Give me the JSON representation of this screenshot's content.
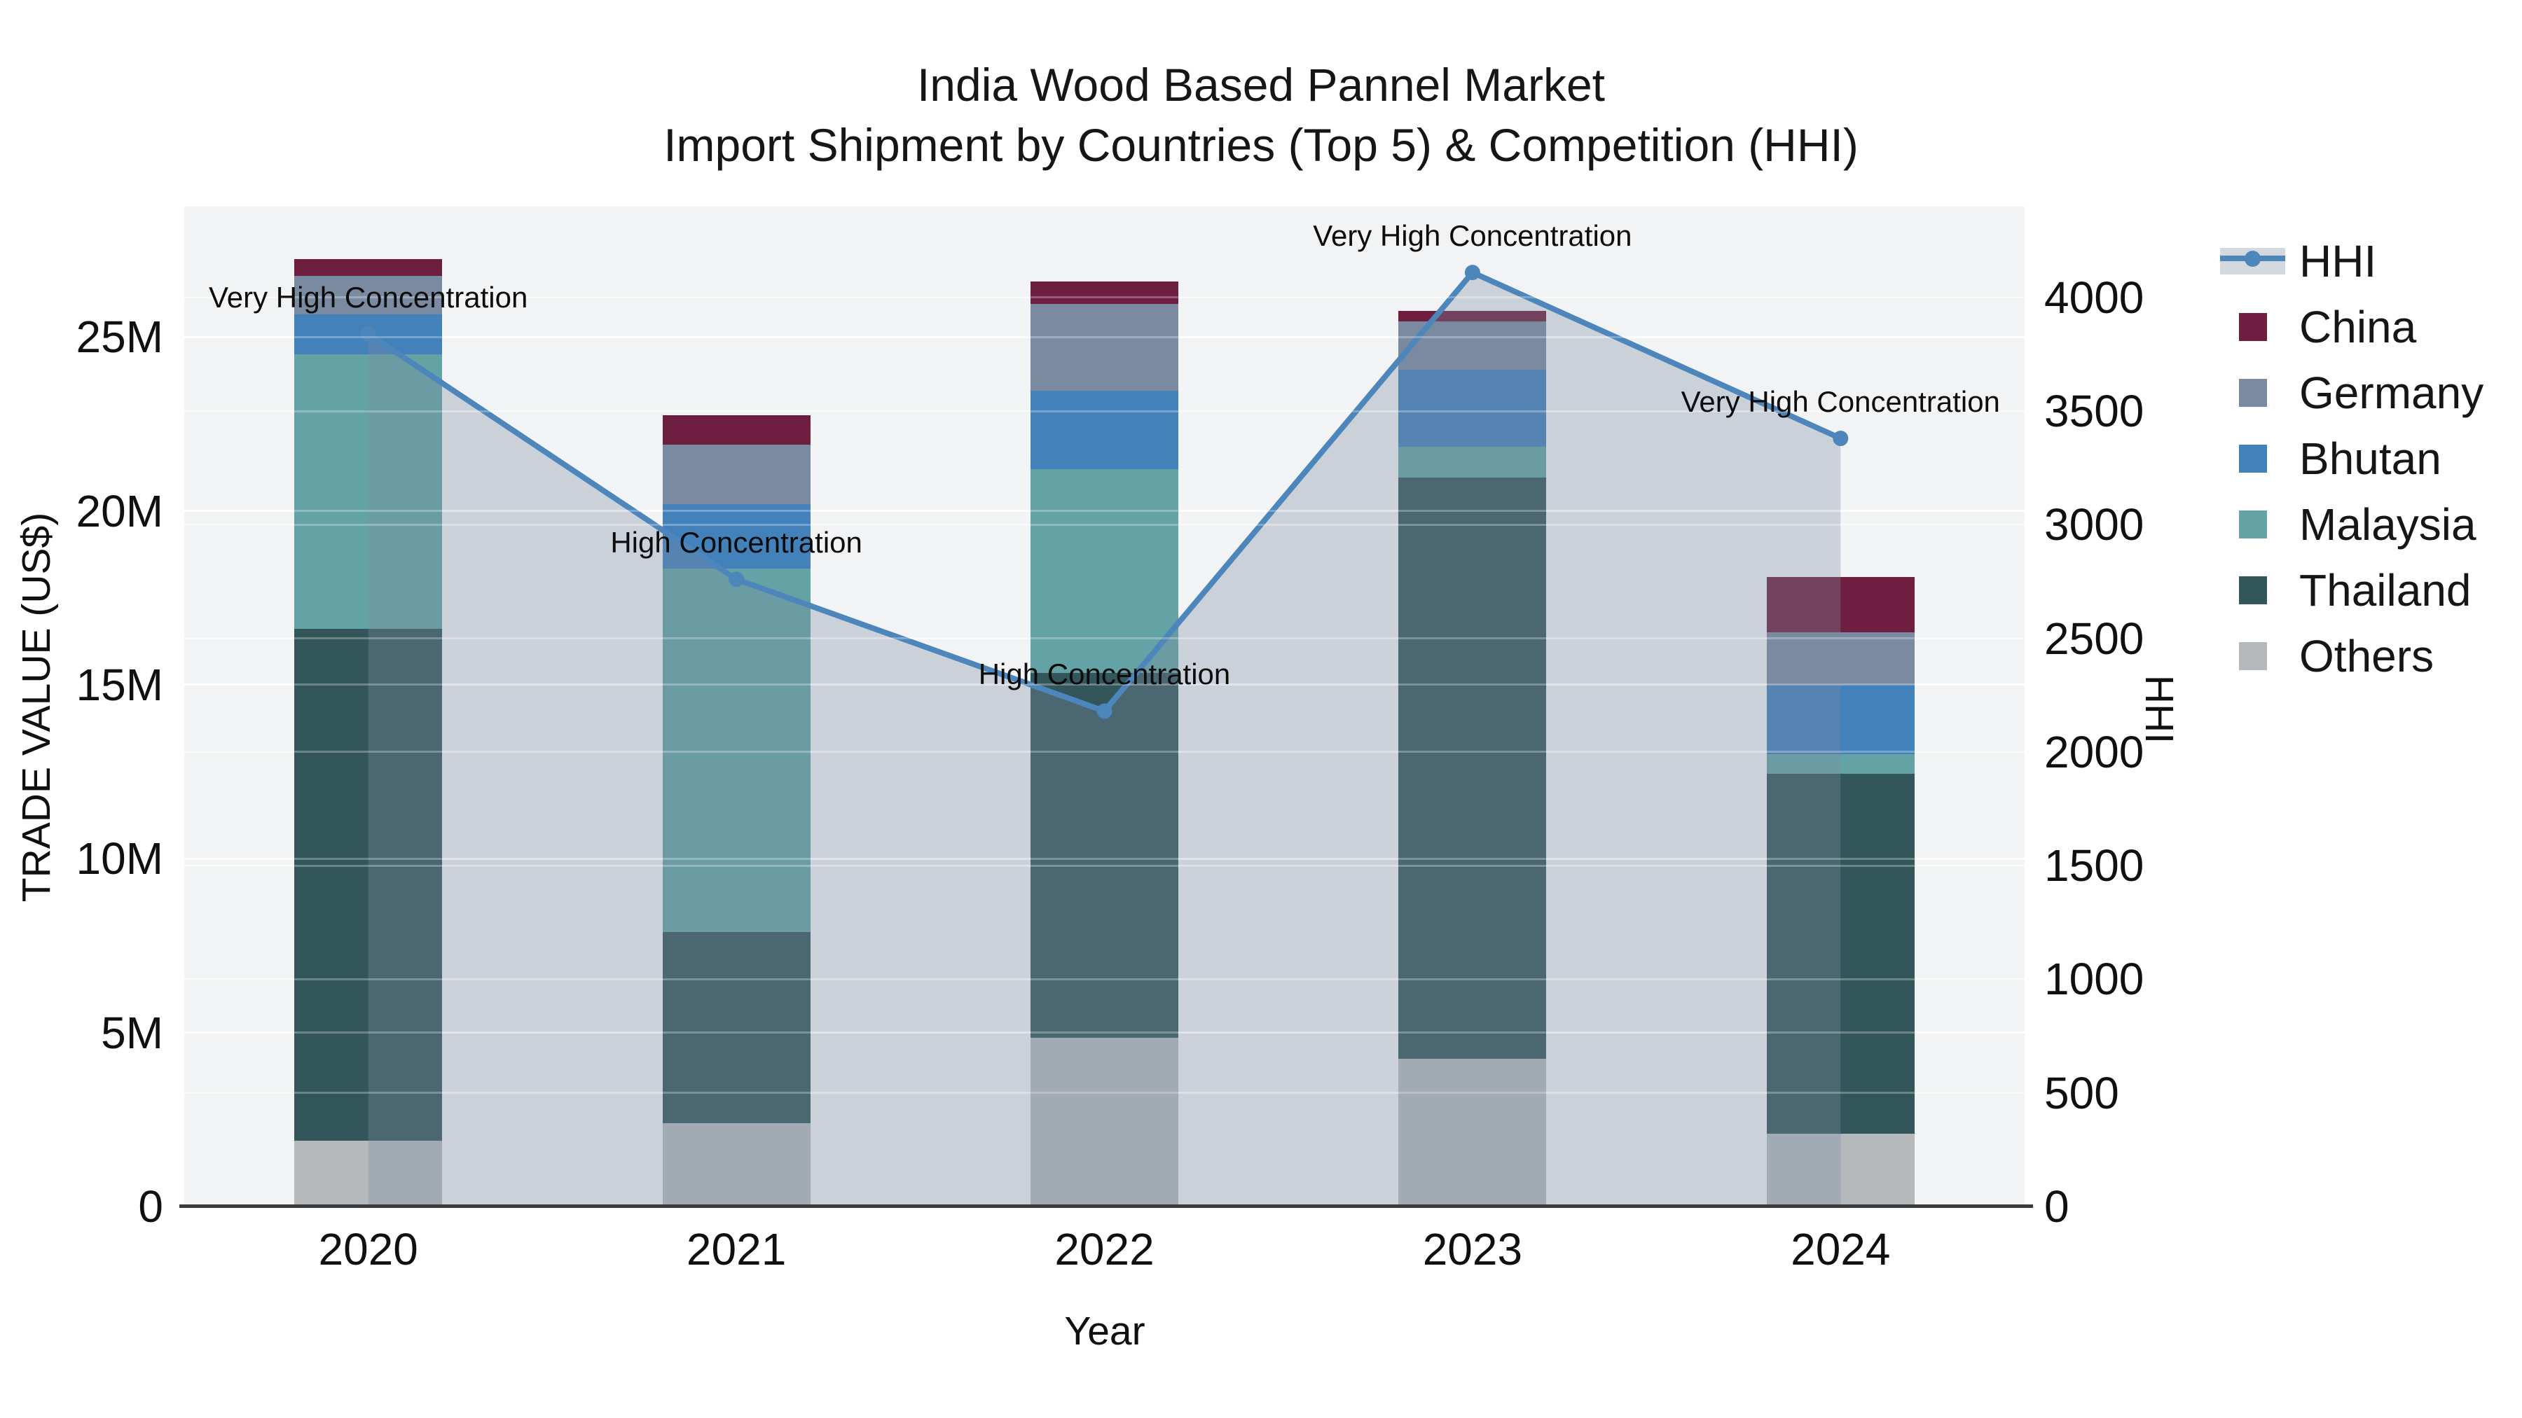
{
  "title": {
    "line1": "India Wood Based Pannel Market",
    "line2": "Import Shipment by Countries (Top 5) & Competition (HHI)"
  },
  "axes": {
    "left": {
      "title": "TRADE VALUE (US$)",
      "ticks": [
        {
          "label": "0",
          "value": 0
        },
        {
          "label": "5M",
          "value": 5
        },
        {
          "label": "10M",
          "value": 10
        },
        {
          "label": "15M",
          "value": 15
        },
        {
          "label": "20M",
          "value": 20
        },
        {
          "label": "25M",
          "value": 25
        }
      ],
      "range_max_millions": 28.75
    },
    "right": {
      "title": "HHI",
      "ticks": [
        {
          "label": "0",
          "value": 0
        },
        {
          "label": "500",
          "value": 500
        },
        {
          "label": "1000",
          "value": 1000
        },
        {
          "label": "1500",
          "value": 1500
        },
        {
          "label": "2000",
          "value": 2000
        },
        {
          "label": "2500",
          "value": 2500
        },
        {
          "label": "3000",
          "value": 3000
        },
        {
          "label": "3500",
          "value": 3500
        },
        {
          "label": "4000",
          "value": 4000
        }
      ],
      "range_max": 4400
    },
    "x": {
      "title": "Year"
    }
  },
  "chart_data": {
    "type": "bar",
    "subtype": "stacked bars (trade value, left axis) + HHI line with area fill (right axis)",
    "categories": [
      "2020",
      "2021",
      "2022",
      "2023",
      "2024"
    ],
    "series": [
      {
        "name": "Others",
        "color": "#B5B9BC",
        "axis": "left",
        "values_millions": [
          1.9,
          2.4,
          4.85,
          4.25,
          2.1
        ]
      },
      {
        "name": "Thailand",
        "color": "#33565B",
        "axis": "left",
        "values_millions": [
          14.7,
          5.5,
          10.5,
          16.7,
          10.35
        ]
      },
      {
        "name": "Malaysia",
        "color": "#63A3A5",
        "axis": "left",
        "values_millions": [
          7.9,
          10.45,
          5.85,
          0.9,
          0.55
        ]
      },
      {
        "name": "Bhutan",
        "color": "#4381BB",
        "axis": "left",
        "values_millions": [
          1.15,
          1.85,
          2.25,
          2.2,
          2.0
        ]
      },
      {
        "name": "Germany",
        "color": "#7A8AA0",
        "axis": "left",
        "values_millions": [
          1.1,
          1.7,
          2.5,
          1.4,
          1.5
        ]
      },
      {
        "name": "China",
        "color": "#6E1E3E",
        "axis": "left",
        "values_millions": [
          0.5,
          0.85,
          0.65,
          0.3,
          1.6
        ]
      }
    ],
    "line_series": {
      "name": "HHI",
      "axis": "right",
      "color": "#4C86BA",
      "area_fill": "rgba(125,140,160,0.33)",
      "values": [
        3840,
        2760,
        2180,
        4110,
        3380
      ]
    },
    "annotations": [
      {
        "category": "2020",
        "text": "Very High Concentration"
      },
      {
        "category": "2021",
        "text": "High Concentration"
      },
      {
        "category": "2022",
        "text": "High Concentration"
      },
      {
        "category": "2023",
        "text": "Very High Concentration"
      },
      {
        "category": "2024",
        "text": "Very High Concentration"
      }
    ],
    "totals_millions": [
      27.25,
      22.75,
      26.6,
      25.75,
      18.1
    ],
    "units": "bar values in millions US$; line values in HHI index points",
    "grid": true,
    "legend_position": "right",
    "stack_order": "bottom to top as listed in series"
  },
  "legend": {
    "items": [
      {
        "label": "HHI",
        "type": "line",
        "color": "#4C86BA"
      },
      {
        "label": "China",
        "type": "square",
        "color": "#6E1E3E"
      },
      {
        "label": "Germany",
        "type": "square",
        "color": "#7A8AA0"
      },
      {
        "label": "Bhutan",
        "type": "square",
        "color": "#4381BB"
      },
      {
        "label": "Malaysia",
        "type": "square",
        "color": "#63A3A5"
      },
      {
        "label": "Thailand",
        "type": "square",
        "color": "#33565B"
      },
      {
        "label": "Others",
        "type": "square",
        "color": "#B5B9BC"
      }
    ]
  },
  "colors": {
    "plot_background": "#F2F3F4",
    "figure_background": "#FFFFFF",
    "gridline": "#FFFFFF",
    "axis_line": "#3B3B3B",
    "text": "#111111"
  }
}
